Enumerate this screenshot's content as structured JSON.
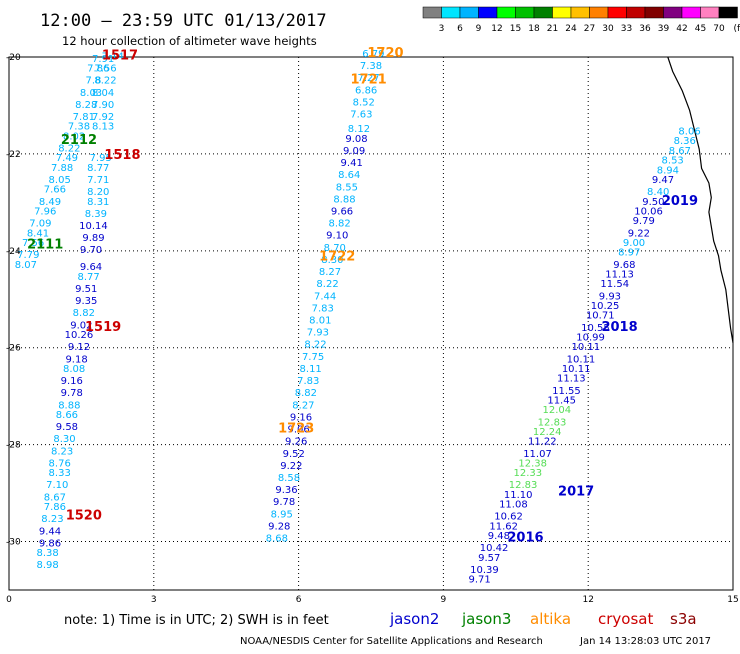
{
  "title": "12:00 – 23:59 UTC 01/13/2017",
  "subtitle": "12 hour collection of altimeter wave heights",
  "color_scale": {
    "unit": "(ft)",
    "colors": [
      "#808080",
      "#00e5ff",
      "#00b4ff",
      "#0000ff",
      "#00ff00",
      "#00c000",
      "#008000",
      "#ffff00",
      "#ffc000",
      "#ff8000",
      "#ff0000",
      "#c00000",
      "#800000",
      "#800080",
      "#ff00ff",
      "#ff80c0",
      "#000000"
    ],
    "labels": [
      "3",
      "6",
      "9",
      "12",
      "15",
      "18",
      "21",
      "24",
      "27",
      "30",
      "33",
      "36",
      "39",
      "42",
      "45",
      "70"
    ]
  },
  "axes": {
    "x_ticks": [
      "0",
      "3",
      "6",
      "9",
      "12",
      "15"
    ],
    "y_ticks": [
      "-20",
      "-22",
      "-24",
      "-26",
      "-28",
      "-30"
    ]
  },
  "satellites": [
    {
      "name": "jason2",
      "color": "#0000cc"
    },
    {
      "name": "jason3",
      "color": "#008000"
    },
    {
      "name": "altika",
      "color": "#ff8c00"
    },
    {
      "name": "cryosat",
      "color": "#cc0000"
    },
    {
      "name": "s3a",
      "color": "#8b0000"
    }
  ],
  "note": "note:  1) Time is in UTC;  2) SWH is in feet",
  "credit": "NOAA/NESDIS Center for Satellite Applications and Research",
  "timestamp": "Jan 14 13:28:03 UTC 2017",
  "pass_tags": [
    {
      "text": "1517",
      "lon": 2.3,
      "lat": -20.05,
      "color": "#cc0000"
    },
    {
      "text": "1720",
      "lon": 7.8,
      "lat": -20.0,
      "color": "#ff8c00"
    },
    {
      "text": "1721",
      "lon": 7.45,
      "lat": -20.55,
      "color": "#ff8c00"
    },
    {
      "text": "2112",
      "lon": 1.45,
      "lat": -21.8,
      "color": "#008000"
    },
    {
      "text": "1518",
      "lon": 2.35,
      "lat": -22.1,
      "color": "#cc0000"
    },
    {
      "text": "2019",
      "lon": 13.9,
      "lat": -23.05,
      "color": "#0000cc"
    },
    {
      "text": "2111",
      "lon": 0.75,
      "lat": -23.95,
      "color": "#008000"
    },
    {
      "text": "1722",
      "lon": 6.8,
      "lat": -24.2,
      "color": "#ff8c00"
    },
    {
      "text": "2018",
      "lon": 12.65,
      "lat": -25.65,
      "color": "#0000cc"
    },
    {
      "text": "1519",
      "lon": 1.95,
      "lat": -25.65,
      "color": "#cc0000"
    },
    {
      "text": "1723",
      "lon": 5.95,
      "lat": -27.75,
      "color": "#ff8c00"
    },
    {
      "text": "2017",
      "lon": 11.75,
      "lat": -29.05,
      "color": "#0000cc"
    },
    {
      "text": "1520",
      "lon": 1.55,
      "lat": -29.55,
      "color": "#cc0000"
    },
    {
      "text": "2016",
      "lon": 10.7,
      "lat": -30.0,
      "color": "#0000cc"
    }
  ],
  "swh": [
    {
      "v": "7.91",
      "lon": 1.95,
      "lat": -20.1,
      "c": "#00b4ff"
    },
    {
      "v": "7.14",
      "lon": 2.15,
      "lat": -20.05,
      "c": "#00b4ff"
    },
    {
      "v": "7.56",
      "lon": 2.0,
      "lat": -20.3,
      "c": "#00b4ff"
    },
    {
      "v": "7.86",
      "lon": 1.85,
      "lat": -20.3,
      "c": "#00b4ff"
    },
    {
      "v": "8.22",
      "lon": 2.0,
      "lat": -20.55,
      "c": "#00b4ff"
    },
    {
      "v": "7.8",
      "lon": 1.75,
      "lat": -20.55,
      "c": "#00b4ff"
    },
    {
      "v": "8.04",
      "lon": 1.95,
      "lat": -20.8,
      "c": "#00b4ff"
    },
    {
      "v": "8.03",
      "lon": 1.7,
      "lat": -20.8,
      "c": "#00b4ff"
    },
    {
      "v": "8.28",
      "lon": 1.6,
      "lat": -21.05,
      "c": "#00b4ff"
    },
    {
      "v": "7.90",
      "lon": 1.95,
      "lat": -21.05,
      "c": "#00b4ff"
    },
    {
      "v": "7.81",
      "lon": 1.55,
      "lat": -21.3,
      "c": "#00b4ff"
    },
    {
      "v": "7.92",
      "lon": 1.95,
      "lat": -21.3,
      "c": "#00b4ff"
    },
    {
      "v": "7.38",
      "lon": 1.45,
      "lat": -21.5,
      "c": "#00b4ff"
    },
    {
      "v": "8.13",
      "lon": 1.95,
      "lat": -21.5,
      "c": "#00b4ff"
    },
    {
      "v": "8.02",
      "lon": 1.35,
      "lat": -21.7,
      "c": "#00b4ff"
    },
    {
      "v": "8.22",
      "lon": 1.25,
      "lat": -21.95,
      "c": "#00b4ff"
    },
    {
      "v": "7.49",
      "lon": 1.2,
      "lat": -22.15,
      "c": "#00b4ff"
    },
    {
      "v": "7.95",
      "lon": 1.9,
      "lat": -22.15,
      "c": "#00b4ff"
    },
    {
      "v": "7.88",
      "lon": 1.1,
      "lat": -22.35,
      "c": "#00b4ff"
    },
    {
      "v": "8.77",
      "lon": 1.85,
      "lat": -22.35,
      "c": "#00b4ff"
    },
    {
      "v": "8.05",
      "lon": 1.05,
      "lat": -22.6,
      "c": "#00b4ff"
    },
    {
      "v": "7.71",
      "lon": 1.85,
      "lat": -22.6,
      "c": "#00b4ff"
    },
    {
      "v": "7.66",
      "lon": 0.95,
      "lat": -22.8,
      "c": "#00b4ff"
    },
    {
      "v": "8.20",
      "lon": 1.85,
      "lat": -22.85,
      "c": "#00b4ff"
    },
    {
      "v": "8.49",
      "lon": 0.85,
      "lat": -23.05,
      "c": "#00b4ff"
    },
    {
      "v": "8.31",
      "lon": 1.85,
      "lat": -23.05,
      "c": "#00b4ff"
    },
    {
      "v": "7.96",
      "lon": 0.75,
      "lat": -23.25,
      "c": "#00b4ff"
    },
    {
      "v": "8.39",
      "lon": 1.8,
      "lat": -23.3,
      "c": "#00b4ff"
    },
    {
      "v": "7.09",
      "lon": 0.65,
      "lat": -23.5,
      "c": "#00b4ff"
    },
    {
      "v": "10.14",
      "lon": 1.75,
      "lat": -23.55,
      "c": "#0000cc"
    },
    {
      "v": "8.41",
      "lon": 0.6,
      "lat": -23.7,
      "c": "#00b4ff"
    },
    {
      "v": "9.89",
      "lon": 1.75,
      "lat": -23.8,
      "c": "#0000cc"
    },
    {
      "v": "7.56",
      "lon": 0.5,
      "lat": -23.9,
      "c": "#00b4ff"
    },
    {
      "v": "9.70",
      "lon": 1.7,
      "lat": -24.05,
      "c": "#0000cc"
    },
    {
      "v": "7.79",
      "lon": 0.4,
      "lat": -24.15,
      "c": "#00b4ff"
    },
    {
      "v": "8.07",
      "lon": 0.35,
      "lat": -24.35,
      "c": "#00b4ff"
    },
    {
      "v": "9.64",
      "lon": 1.7,
      "lat": -24.4,
      "c": "#0000cc"
    },
    {
      "v": "8.77",
      "lon": 1.65,
      "lat": -24.6,
      "c": "#00b4ff"
    },
    {
      "v": "9.51",
      "lon": 1.6,
      "lat": -24.85,
      "c": "#0000cc"
    },
    {
      "v": "9.35",
      "lon": 1.6,
      "lat": -25.1,
      "c": "#0000cc"
    },
    {
      "v": "8.82",
      "lon": 1.55,
      "lat": -25.35,
      "c": "#00b4ff"
    },
    {
      "v": "9.02",
      "lon": 1.5,
      "lat": -25.6,
      "c": "#0000cc"
    },
    {
      "v": "10.26",
      "lon": 1.45,
      "lat": -25.8,
      "c": "#0000cc"
    },
    {
      "v": "9.12",
      "lon": 1.45,
      "lat": -26.05,
      "c": "#0000cc"
    },
    {
      "v": "9.18",
      "lon": 1.4,
      "lat": -26.3,
      "c": "#0000cc"
    },
    {
      "v": "8.08",
      "lon": 1.35,
      "lat": -26.5,
      "c": "#00b4ff"
    },
    {
      "v": "9.16",
      "lon": 1.3,
      "lat": -26.75,
      "c": "#0000cc"
    },
    {
      "v": "9.78",
      "lon": 1.3,
      "lat": -27.0,
      "c": "#0000cc"
    },
    {
      "v": "8.88",
      "lon": 1.25,
      "lat": -27.25,
      "c": "#00b4ff"
    },
    {
      "v": "8.66",
      "lon": 1.2,
      "lat": -27.45,
      "c": "#00b4ff"
    },
    {
      "v": "9.58",
      "lon": 1.2,
      "lat": -27.7,
      "c": "#0000cc"
    },
    {
      "v": "8.30",
      "lon": 1.15,
      "lat": -27.95,
      "c": "#00b4ff"
    },
    {
      "v": "8.23",
      "lon": 1.1,
      "lat": -28.2,
      "c": "#00b4ff"
    },
    {
      "v": "8.76",
      "lon": 1.05,
      "lat": -28.45,
      "c": "#00b4ff"
    },
    {
      "v": "8.33",
      "lon": 1.05,
      "lat": -28.65,
      "c": "#00b4ff"
    },
    {
      "v": "7.10",
      "lon": 1.0,
      "lat": -28.9,
      "c": "#00b4ff"
    },
    {
      "v": "8.67",
      "lon": 0.95,
      "lat": -29.15,
      "c": "#00b4ff"
    },
    {
      "v": "7.86",
      "lon": 0.95,
      "lat": -29.35,
      "c": "#00b4ff"
    },
    {
      "v": "8.23",
      "lon": 0.9,
      "lat": -29.6,
      "c": "#00b4ff"
    },
    {
      "v": "9.44",
      "lon": 0.85,
      "lat": -29.85,
      "c": "#0000cc"
    },
    {
      "v": "9.86",
      "lon": 0.85,
      "lat": -30.1,
      "c": "#0000cc"
    },
    {
      "v": "8.38",
      "lon": 0.8,
      "lat": -30.3,
      "c": "#00b4ff"
    },
    {
      "v": "8.98",
      "lon": 0.8,
      "lat": -30.55,
      "c": "#00b4ff"
    },
    {
      "v": "6.79",
      "lon": 7.55,
      "lat": -20.0,
      "c": "#00b4ff"
    },
    {
      "v": "7.38",
      "lon": 7.5,
      "lat": -20.25,
      "c": "#00b4ff"
    },
    {
      "v": "7.27",
      "lon": 7.45,
      "lat": -20.5,
      "c": "#00b4ff"
    },
    {
      "v": "6.86",
      "lon": 7.4,
      "lat": -20.75,
      "c": "#00b4ff"
    },
    {
      "v": "8.52",
      "lon": 7.35,
      "lat": -21.0,
      "c": "#00b4ff"
    },
    {
      "v": "7.63",
      "lon": 7.3,
      "lat": -21.25,
      "c": "#00b4ff"
    },
    {
      "v": "8.12",
      "lon": 7.25,
      "lat": -21.55,
      "c": "#00b4ff"
    },
    {
      "v": "9.08",
      "lon": 7.2,
      "lat": -21.75,
      "c": "#0000cc"
    },
    {
      "v": "9.09",
      "lon": 7.15,
      "lat": -22.0,
      "c": "#0000cc"
    },
    {
      "v": "9.41",
      "lon": 7.1,
      "lat": -22.25,
      "c": "#0000cc"
    },
    {
      "v": "8.64",
      "lon": 7.05,
      "lat": -22.5,
      "c": "#00b4ff"
    },
    {
      "v": "8.55",
      "lon": 7.0,
      "lat": -22.75,
      "c": "#00b4ff"
    },
    {
      "v": "8.88",
      "lon": 6.95,
      "lat": -23.0,
      "c": "#00b4ff"
    },
    {
      "v": "9.66",
      "lon": 6.9,
      "lat": -23.25,
      "c": "#0000cc"
    },
    {
      "v": "8.82",
      "lon": 6.85,
      "lat": -23.5,
      "c": "#00b4ff"
    },
    {
      "v": "9.10",
      "lon": 6.8,
      "lat": -23.75,
      "c": "#0000cc"
    },
    {
      "v": "8.70",
      "lon": 6.75,
      "lat": -24.0,
      "c": "#00b4ff"
    },
    {
      "v": "8.30",
      "lon": 6.7,
      "lat": -24.25,
      "c": "#00b4ff"
    },
    {
      "v": "8.27",
      "lon": 6.65,
      "lat": -24.5,
      "c": "#00b4ff"
    },
    {
      "v": "8.22",
      "lon": 6.6,
      "lat": -24.75,
      "c": "#00b4ff"
    },
    {
      "v": "7.44",
      "lon": 6.55,
      "lat": -25.0,
      "c": "#00b4ff"
    },
    {
      "v": "7.83",
      "lon": 6.5,
      "lat": -25.25,
      "c": "#00b4ff"
    },
    {
      "v": "8.01",
      "lon": 6.45,
      "lat": -25.5,
      "c": "#00b4ff"
    },
    {
      "v": "7.93",
      "lon": 6.4,
      "lat": -25.75,
      "c": "#00b4ff"
    },
    {
      "v": "8.22",
      "lon": 6.35,
      "lat": -26.0,
      "c": "#00b4ff"
    },
    {
      "v": "7.75",
      "lon": 6.3,
      "lat": -26.25,
      "c": "#00b4ff"
    },
    {
      "v": "8.11",
      "lon": 6.25,
      "lat": -26.5,
      "c": "#00b4ff"
    },
    {
      "v": "7.83",
      "lon": 6.2,
      "lat": -26.75,
      "c": "#00b4ff"
    },
    {
      "v": "8.82",
      "lon": 6.15,
      "lat": -27.0,
      "c": "#00b4ff"
    },
    {
      "v": "8.27",
      "lon": 6.1,
      "lat": -27.25,
      "c": "#00b4ff"
    },
    {
      "v": "9.16",
      "lon": 6.05,
      "lat": -27.5,
      "c": "#0000cc"
    },
    {
      "v": "9.06",
      "lon": 6.0,
      "lat": -27.75,
      "c": "#0000cc"
    },
    {
      "v": "9.26",
      "lon": 5.95,
      "lat": -28.0,
      "c": "#0000cc"
    },
    {
      "v": "9.52",
      "lon": 5.9,
      "lat": -28.25,
      "c": "#0000cc"
    },
    {
      "v": "9.22",
      "lon": 5.85,
      "lat": -28.5,
      "c": "#0000cc"
    },
    {
      "v": "8.58",
      "lon": 5.8,
      "lat": -28.75,
      "c": "#00b4ff"
    },
    {
      "v": "9.36",
      "lon": 5.75,
      "lat": -29.0,
      "c": "#0000cc"
    },
    {
      "v": "9.78",
      "lon": 5.7,
      "lat": -29.25,
      "c": "#0000cc"
    },
    {
      "v": "8.95",
      "lon": 5.65,
      "lat": -29.5,
      "c": "#00b4ff"
    },
    {
      "v": "9.28",
      "lon": 5.6,
      "lat": -29.75,
      "c": "#0000cc"
    },
    {
      "v": "8.68",
      "lon": 5.55,
      "lat": -30.0,
      "c": "#00b4ff"
    },
    {
      "v": "8.06",
      "lon": 14.1,
      "lat": -21.6,
      "c": "#00b4ff"
    },
    {
      "v": "8.36",
      "lon": 14.0,
      "lat": -21.8,
      "c": "#00b4ff"
    },
    {
      "v": "8.67",
      "lon": 13.9,
      "lat": -22.0,
      "c": "#00b4ff"
    },
    {
      "v": "8.53",
      "lon": 13.75,
      "lat": -22.2,
      "c": "#00b4ff"
    },
    {
      "v": "8.94",
      "lon": 13.65,
      "lat": -22.4,
      "c": "#00b4ff"
    },
    {
      "v": "9.47",
      "lon": 13.55,
      "lat": -22.6,
      "c": "#0000cc"
    },
    {
      "v": "8.40",
      "lon": 13.45,
      "lat": -22.85,
      "c": "#00b4ff"
    },
    {
      "v": "9.50",
      "lon": 13.35,
      "lat": -23.05,
      "c": "#0000cc"
    },
    {
      "v": "10.06",
      "lon": 13.25,
      "lat": -23.25,
      "c": "#0000cc"
    },
    {
      "v": "9.79",
      "lon": 13.15,
      "lat": -23.45,
      "c": "#0000cc"
    },
    {
      "v": "9.22",
      "lon": 13.05,
      "lat": -23.7,
      "c": "#0000cc"
    },
    {
      "v": "9.00",
      "lon": 12.95,
      "lat": -23.9,
      "c": "#00b4ff"
    },
    {
      "v": "8.97",
      "lon": 12.85,
      "lat": -24.1,
      "c": "#00b4ff"
    },
    {
      "v": "9.68",
      "lon": 12.75,
      "lat": -24.35,
      "c": "#0000cc"
    },
    {
      "v": "11.13",
      "lon": 12.65,
      "lat": -24.55,
      "c": "#0000cc"
    },
    {
      "v": "11.54",
      "lon": 12.55,
      "lat": -24.75,
      "c": "#0000cc"
    },
    {
      "v": "9.93",
      "lon": 12.45,
      "lat": -25.0,
      "c": "#0000cc"
    },
    {
      "v": "10.25",
      "lon": 12.35,
      "lat": -25.2,
      "c": "#0000cc"
    },
    {
      "v": "10.71",
      "lon": 12.25,
      "lat": -25.4,
      "c": "#0000cc"
    },
    {
      "v": "10.55",
      "lon": 12.15,
      "lat": -25.65,
      "c": "#0000cc"
    },
    {
      "v": "10.99",
      "lon": 12.05,
      "lat": -25.85,
      "c": "#0000cc"
    },
    {
      "v": "10.11",
      "lon": 11.95,
      "lat": -26.05,
      "c": "#0000cc"
    },
    {
      "v": "10.11",
      "lon": 11.85,
      "lat": -26.3,
      "c": "#0000cc"
    },
    {
      "v": "10.11",
      "lon": 11.75,
      "lat": -26.5,
      "c": "#0000cc"
    },
    {
      "v": "11.13",
      "lon": 11.65,
      "lat": -26.7,
      "c": "#0000cc"
    },
    {
      "v": "11.55",
      "lon": 11.55,
      "lat": -26.95,
      "c": "#0000cc"
    },
    {
      "v": "11.45",
      "lon": 11.45,
      "lat": -27.15,
      "c": "#0000cc"
    },
    {
      "v": "12.04",
      "lon": 11.35,
      "lat": -27.35,
      "c": "#55dd55"
    },
    {
      "v": "12.83",
      "lon": 11.25,
      "lat": -27.6,
      "c": "#55dd55"
    },
    {
      "v": "12.24",
      "lon": 11.15,
      "lat": -27.8,
      "c": "#55dd55"
    },
    {
      "v": "11.22",
      "lon": 11.05,
      "lat": -28.0,
      "c": "#0000cc"
    },
    {
      "v": "11.07",
      "lon": 10.95,
      "lat": -28.25,
      "c": "#0000cc"
    },
    {
      "v": "12.38",
      "lon": 10.85,
      "lat": -28.45,
      "c": "#55dd55"
    },
    {
      "v": "12.33",
      "lon": 10.75,
      "lat": -28.65,
      "c": "#55dd55"
    },
    {
      "v": "12.83",
      "lon": 10.65,
      "lat": -28.9,
      "c": "#55dd55"
    },
    {
      "v": "11.10",
      "lon": 10.55,
      "lat": -29.1,
      "c": "#0000cc"
    },
    {
      "v": "11.08",
      "lon": 10.45,
      "lat": -29.3,
      "c": "#0000cc"
    },
    {
      "v": "10.62",
      "lon": 10.35,
      "lat": -29.55,
      "c": "#0000cc"
    },
    {
      "v": "11.62",
      "lon": 10.25,
      "lat": -29.75,
      "c": "#0000cc"
    },
    {
      "v": "9.48",
      "lon": 10.15,
      "lat": -29.95,
      "c": "#0000cc"
    },
    {
      "v": "10.42",
      "lon": 10.05,
      "lat": -30.2,
      "c": "#0000cc"
    },
    {
      "v": "9.57",
      "lon": 9.95,
      "lat": -30.4,
      "c": "#0000cc"
    },
    {
      "v": "10.39",
      "lon": 9.85,
      "lat": -30.65,
      "c": "#0000cc"
    },
    {
      "v": "9.71",
      "lon": 9.75,
      "lat": -30.85,
      "c": "#0000cc"
    }
  ],
  "coastline": [
    [
      13.65,
      -20.0
    ],
    [
      13.75,
      -20.3
    ],
    [
      13.95,
      -20.7
    ],
    [
      14.1,
      -21.1
    ],
    [
      14.2,
      -21.5
    ],
    [
      14.3,
      -21.9
    ],
    [
      14.35,
      -22.3
    ],
    [
      14.5,
      -22.6
    ],
    [
      14.55,
      -22.9
    ],
    [
      14.5,
      -23.2
    ],
    [
      14.55,
      -23.5
    ],
    [
      14.6,
      -23.8
    ],
    [
      14.7,
      -24.1
    ],
    [
      14.75,
      -24.4
    ],
    [
      14.85,
      -24.8
    ],
    [
      14.9,
      -25.2
    ],
    [
      14.95,
      -25.6
    ],
    [
      15.0,
      -25.9
    ]
  ]
}
